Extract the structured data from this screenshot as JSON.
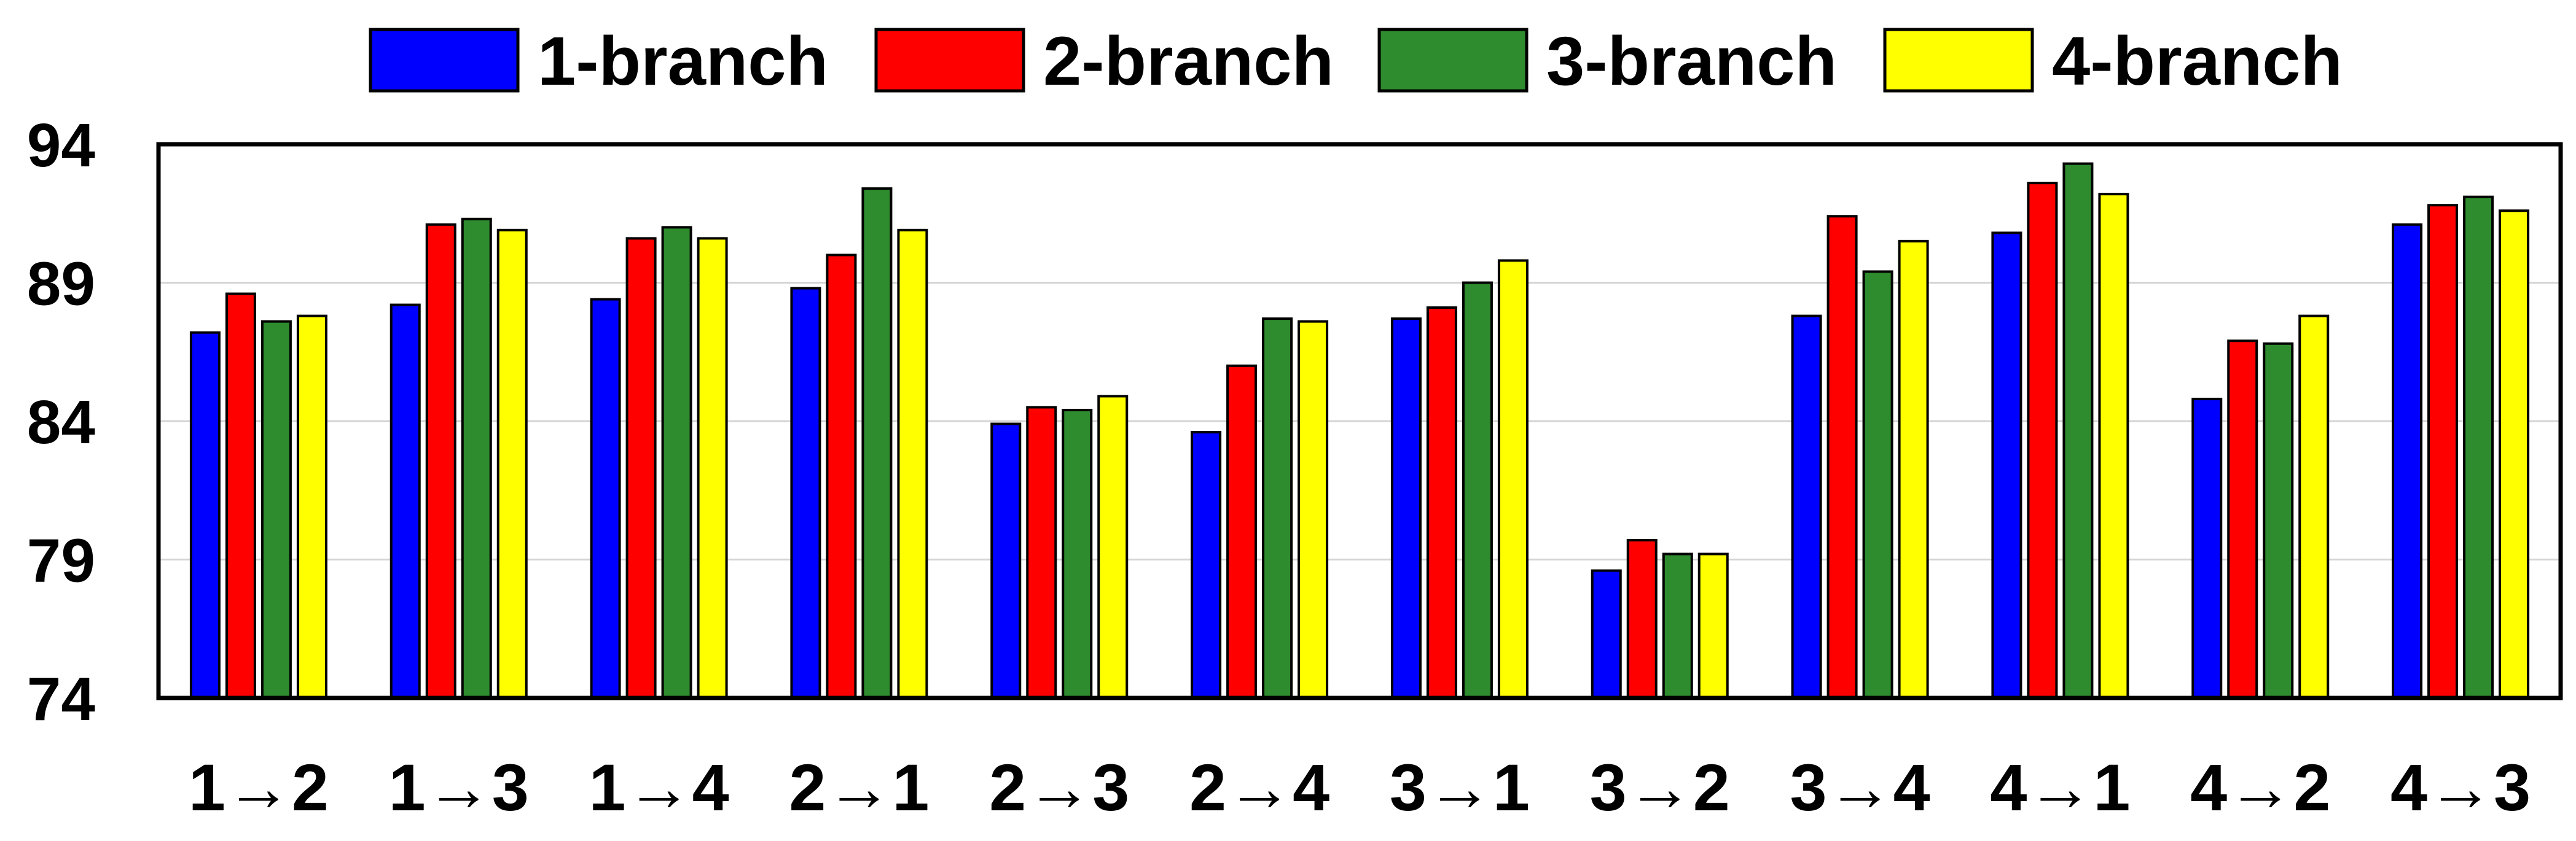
{
  "chart_data": {
    "type": "bar",
    "categories": [
      "1→2",
      "1→3",
      "1→4",
      "2→1",
      "2→3",
      "2→4",
      "3→1",
      "3→2",
      "3→4",
      "4→1",
      "4→2",
      "4→3"
    ],
    "series": [
      {
        "name": "1-branch",
        "color": "#0000ff",
        "values": [
          87.2,
          88.2,
          88.4,
          88.8,
          83.9,
          83.6,
          87.7,
          78.6,
          87.8,
          90.8,
          84.8,
          91.1
        ]
      },
      {
        "name": "2-branch",
        "color": "#ff0000",
        "values": [
          88.6,
          91.1,
          90.6,
          90.0,
          84.5,
          86.0,
          88.1,
          79.7,
          91.4,
          92.6,
          86.9,
          91.8
        ]
      },
      {
        "name": "3-branch",
        "color": "#2e8b2e",
        "values": [
          87.6,
          91.3,
          91.0,
          92.4,
          84.4,
          87.7,
          89.0,
          79.2,
          89.4,
          93.3,
          86.8,
          92.1
        ]
      },
      {
        "name": "4-branch",
        "color": "#ffff00",
        "values": [
          87.8,
          90.9,
          90.6,
          90.9,
          84.9,
          87.6,
          89.8,
          79.2,
          90.5,
          92.2,
          87.8,
          91.6
        ]
      }
    ],
    "yticks": [
      74,
      79,
      84,
      89,
      94
    ],
    "ylim": [
      74,
      94
    ],
    "grid": true,
    "legend_position": "top-center",
    "title": "",
    "xlabel": "",
    "ylabel": ""
  }
}
